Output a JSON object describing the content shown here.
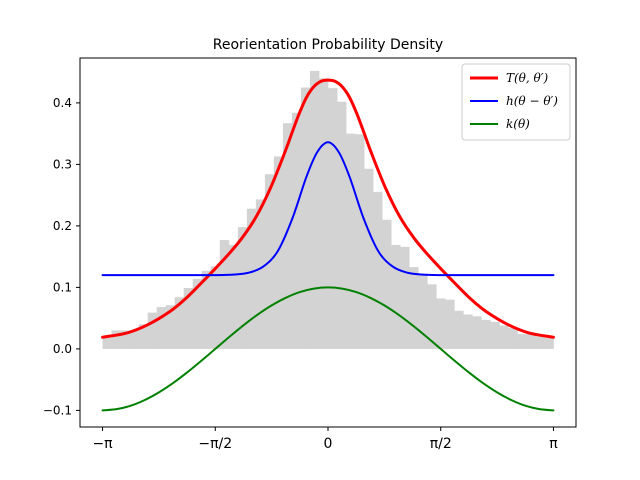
{
  "chart_data": {
    "type": "line",
    "title": "Reorientation Probability Density",
    "xlabel": "",
    "ylabel": "",
    "xlim": [
      -3.4558,
      3.4558
    ],
    "ylim": [
      -0.127,
      0.473
    ],
    "x_ticks": [
      {
        "value": -3.14159,
        "label": "−π"
      },
      {
        "value": -1.5708,
        "label": "−π/2"
      },
      {
        "value": 0,
        "label": "0"
      },
      {
        "value": 1.5708,
        "label": "π/2"
      },
      {
        "value": 3.14159,
        "label": "π"
      }
    ],
    "y_ticks": [
      {
        "value": -0.1,
        "label": "−0.1"
      },
      {
        "value": 0.0,
        "label": "0.0"
      },
      {
        "value": 0.1,
        "label": "0.1"
      },
      {
        "value": 0.2,
        "label": "0.2"
      },
      {
        "value": 0.3,
        "label": "0.3"
      },
      {
        "value": 0.4,
        "label": "0.4"
      }
    ],
    "grid": false,
    "legend_position": "top-right",
    "histogram": {
      "color": "#d3d3d3",
      "bin_edges_start": -3.14159,
      "bin_width": 0.12566,
      "values": [
        0.018,
        0.03,
        0.03,
        0.03,
        0.04,
        0.059,
        0.068,
        0.071,
        0.084,
        0.099,
        0.114,
        0.127,
        0.134,
        0.177,
        0.169,
        0.198,
        0.228,
        0.243,
        0.284,
        0.313,
        0.367,
        0.384,
        0.425,
        0.452,
        0.44,
        0.424,
        0.402,
        0.35,
        0.349,
        0.293,
        0.255,
        0.21,
        0.169,
        0.166,
        0.133,
        0.122,
        0.105,
        0.082,
        0.08,
        0.062,
        0.056,
        0.053,
        0.047,
        0.044,
        0.038,
        0.034,
        0.024,
        0.025,
        0.02,
        0.018
      ]
    },
    "series": [
      {
        "name": "T(θ, θ′)",
        "color": "#ff0000",
        "line_width": 3,
        "x": [
          -3.1416,
          -2.8,
          -2.5,
          -2.2,
          -2.0,
          -1.8,
          -1.6,
          -1.4,
          -1.2,
          -1.0,
          -0.8,
          -0.6,
          -0.5,
          -0.4,
          -0.3,
          -0.2,
          -0.1,
          0.0,
          0.1,
          0.2,
          0.3,
          0.4,
          0.5,
          0.6,
          0.8,
          1.0,
          1.2,
          1.4,
          1.6,
          1.8,
          2.0,
          2.2,
          2.5,
          2.8,
          3.1416
        ],
        "y": [
          0.019,
          0.026,
          0.04,
          0.061,
          0.08,
          0.103,
          0.127,
          0.152,
          0.18,
          0.215,
          0.262,
          0.32,
          0.352,
          0.383,
          0.409,
          0.426,
          0.435,
          0.437,
          0.435,
          0.426,
          0.409,
          0.383,
          0.352,
          0.32,
          0.262,
          0.215,
          0.18,
          0.152,
          0.127,
          0.103,
          0.08,
          0.061,
          0.04,
          0.026,
          0.019
        ]
      },
      {
        "name": "h(θ − θ′)",
        "color": "#0000ff",
        "line_width": 2,
        "x": [
          -3.1416,
          -2.5,
          -2.0,
          -1.6,
          -1.3,
          -1.1,
          -0.9,
          -0.7,
          -0.5,
          -0.3,
          -0.15,
          0.0,
          0.15,
          0.3,
          0.5,
          0.7,
          0.9,
          1.1,
          1.3,
          1.6,
          2.0,
          2.5,
          3.1416
        ],
        "y": [
          0.12,
          0.12,
          0.12,
          0.12,
          0.121,
          0.124,
          0.134,
          0.159,
          0.211,
          0.28,
          0.32,
          0.336,
          0.32,
          0.28,
          0.211,
          0.159,
          0.134,
          0.124,
          0.121,
          0.12,
          0.12,
          0.12,
          0.12
        ]
      },
      {
        "name": "k(θ)",
        "color": "#008000",
        "line_width": 2,
        "x": [
          -3.1416,
          -2.9452,
          -2.7489,
          -2.5525,
          -2.3562,
          -2.1598,
          -1.9635,
          -1.7671,
          -1.5708,
          -1.3744,
          -1.1781,
          -0.9817,
          -0.7854,
          -0.589,
          -0.3927,
          -0.1963,
          0.0,
          0.1963,
          0.3927,
          0.589,
          0.7854,
          0.9817,
          1.1781,
          1.3744,
          1.5708,
          1.7671,
          1.9635,
          2.1598,
          2.3562,
          2.5525,
          2.7489,
          2.9452,
          3.1416
        ],
        "y": [
          -0.1,
          -0.098,
          -0.0924,
          -0.0831,
          -0.0707,
          -0.0556,
          -0.0383,
          -0.0195,
          0.0,
          0.0195,
          0.0383,
          0.0556,
          0.0707,
          0.0831,
          0.0924,
          0.098,
          0.1,
          0.098,
          0.0924,
          0.0831,
          0.0707,
          0.0556,
          0.0383,
          0.0195,
          0.0,
          -0.0195,
          -0.0383,
          -0.0556,
          -0.0707,
          -0.0831,
          -0.0924,
          -0.098,
          -0.1
        ]
      }
    ]
  }
}
